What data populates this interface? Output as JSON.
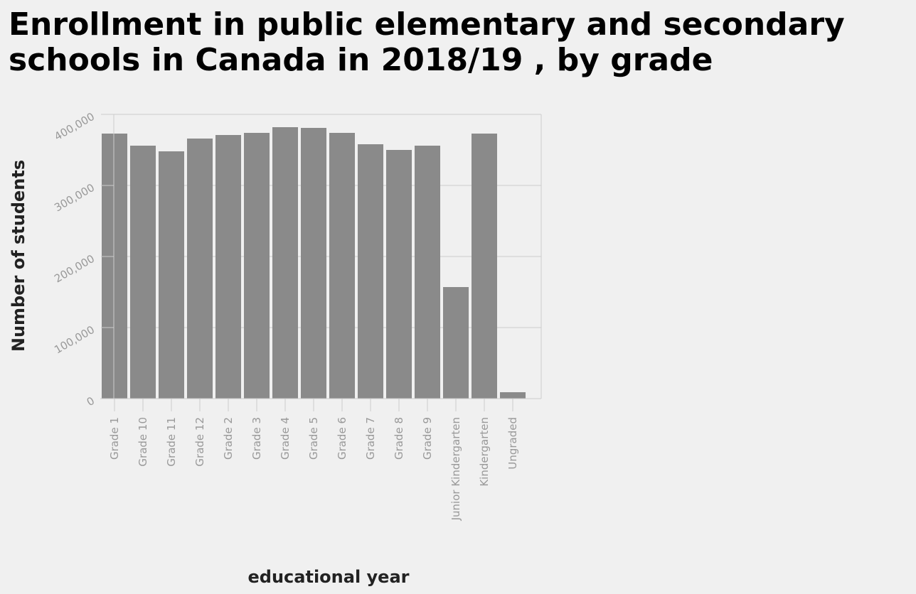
{
  "chart_data": {
    "type": "bar",
    "title": "Enrollment in public elementary and secondary schools in Canada in 2018/19 , by grade",
    "xlabel": "educational year",
    "ylabel": "Number of students",
    "categories": [
      "Grade 1",
      "Grade 10",
      "Grade 11",
      "Grade 12",
      "Grade 2",
      "Grade 3",
      "Grade 4",
      "Grade 5",
      "Grade 6",
      "Grade 7",
      "Grade 8",
      "Grade 9",
      "Junior Kindergarten",
      "Kindergarten",
      "Ungraded"
    ],
    "values": [
      373000,
      356000,
      348000,
      366000,
      371000,
      374000,
      382000,
      381000,
      374000,
      358000,
      350000,
      356000,
      157000,
      373000,
      9000
    ],
    "ylim": [
      0,
      400000
    ],
    "yticks": [
      0,
      100000,
      200000,
      300000,
      400000
    ],
    "ytick_labels": [
      "0",
      "100,000",
      "200,000",
      "300,000",
      "400,000"
    ],
    "grid": true,
    "colors": {
      "bar": "#8a8a8a",
      "grid": "#cccccc",
      "tick_text": "#999999",
      "background": "#f0f0f0"
    }
  }
}
